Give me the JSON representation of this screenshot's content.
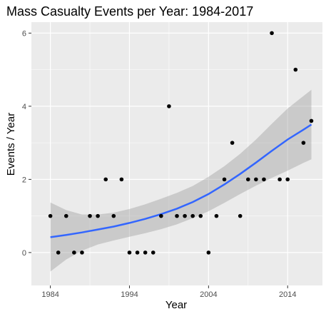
{
  "chart_data": {
    "type": "scatter",
    "title": "Mass Casualty Events per Year: 1984-2017",
    "xlabel": "Year",
    "ylabel": "Events / Year",
    "xlim": [
      1981.6,
      2018.4
    ],
    "ylim": [
      -0.9,
      6.3
    ],
    "xticks": [
      1984,
      1994,
      2004,
      2014
    ],
    "yticks": [
      0,
      2,
      4,
      6
    ],
    "x_minor": [
      1989,
      1999,
      2009
    ],
    "y_minor": [
      1,
      3,
      5
    ],
    "grid": true,
    "colors": {
      "panel": "#ebebeb",
      "grid": "#ffffff",
      "points": "#000000",
      "trend": "#3366ff",
      "band": "#999999"
    },
    "points": [
      {
        "x": 1984,
        "y": 1
      },
      {
        "x": 1985,
        "y": 0
      },
      {
        "x": 1986,
        "y": 1
      },
      {
        "x": 1987,
        "y": 0
      },
      {
        "x": 1988,
        "y": 0
      },
      {
        "x": 1989,
        "y": 1
      },
      {
        "x": 1990,
        "y": 1
      },
      {
        "x": 1991,
        "y": 2
      },
      {
        "x": 1992,
        "y": 1
      },
      {
        "x": 1993,
        "y": 2
      },
      {
        "x": 1994,
        "y": 0
      },
      {
        "x": 1995,
        "y": 0
      },
      {
        "x": 1996,
        "y": 0
      },
      {
        "x": 1997,
        "y": 0
      },
      {
        "x": 1998,
        "y": 1
      },
      {
        "x": 1999,
        "y": 4
      },
      {
        "x": 2000,
        "y": 1
      },
      {
        "x": 2001,
        "y": 1
      },
      {
        "x": 2002,
        "y": 1
      },
      {
        "x": 2003,
        "y": 1
      },
      {
        "x": 2004,
        "y": 0
      },
      {
        "x": 2005,
        "y": 1
      },
      {
        "x": 2006,
        "y": 2
      },
      {
        "x": 2007,
        "y": 3
      },
      {
        "x": 2008,
        "y": 1
      },
      {
        "x": 2009,
        "y": 2
      },
      {
        "x": 2010,
        "y": 2
      },
      {
        "x": 2011,
        "y": 2
      },
      {
        "x": 2012,
        "y": 6
      },
      {
        "x": 2013,
        "y": 2
      },
      {
        "x": 2014,
        "y": 2
      },
      {
        "x": 2015,
        "y": 5
      },
      {
        "x": 2016,
        "y": 3
      },
      {
        "x": 2017,
        "y": 3.6
      }
    ],
    "trend": [
      {
        "x": 1984,
        "y": 0.42,
        "lo": -0.52,
        "hi": 1.37
      },
      {
        "x": 1986,
        "y": 0.48,
        "lo": -0.19,
        "hi": 1.16
      },
      {
        "x": 1988,
        "y": 0.55,
        "lo": 0.05,
        "hi": 1.04
      },
      {
        "x": 1990,
        "y": 0.63,
        "lo": 0.22,
        "hi": 1.04
      },
      {
        "x": 1992,
        "y": 0.71,
        "lo": 0.33,
        "hi": 1.09
      },
      {
        "x": 1994,
        "y": 0.81,
        "lo": 0.43,
        "hi": 1.19
      },
      {
        "x": 1996,
        "y": 0.92,
        "lo": 0.53,
        "hi": 1.32
      },
      {
        "x": 1998,
        "y": 1.05,
        "lo": 0.64,
        "hi": 1.47
      },
      {
        "x": 2000,
        "y": 1.2,
        "lo": 0.77,
        "hi": 1.63
      },
      {
        "x": 2002,
        "y": 1.38,
        "lo": 0.94,
        "hi": 1.82
      },
      {
        "x": 2004,
        "y": 1.6,
        "lo": 1.13,
        "hi": 2.07
      },
      {
        "x": 2006,
        "y": 1.86,
        "lo": 1.36,
        "hi": 2.36
      },
      {
        "x": 2008,
        "y": 2.15,
        "lo": 1.6,
        "hi": 2.7
      },
      {
        "x": 2010,
        "y": 2.46,
        "lo": 1.83,
        "hi": 3.09
      },
      {
        "x": 2012,
        "y": 2.78,
        "lo": 2.04,
        "hi": 3.52
      },
      {
        "x": 2014,
        "y": 3.09,
        "lo": 2.24,
        "hi": 3.94
      },
      {
        "x": 2016,
        "y": 3.36,
        "lo": 2.45,
        "hi": 4.28
      },
      {
        "x": 2017,
        "y": 3.5,
        "lo": 2.55,
        "hi": 4.45
      }
    ]
  }
}
